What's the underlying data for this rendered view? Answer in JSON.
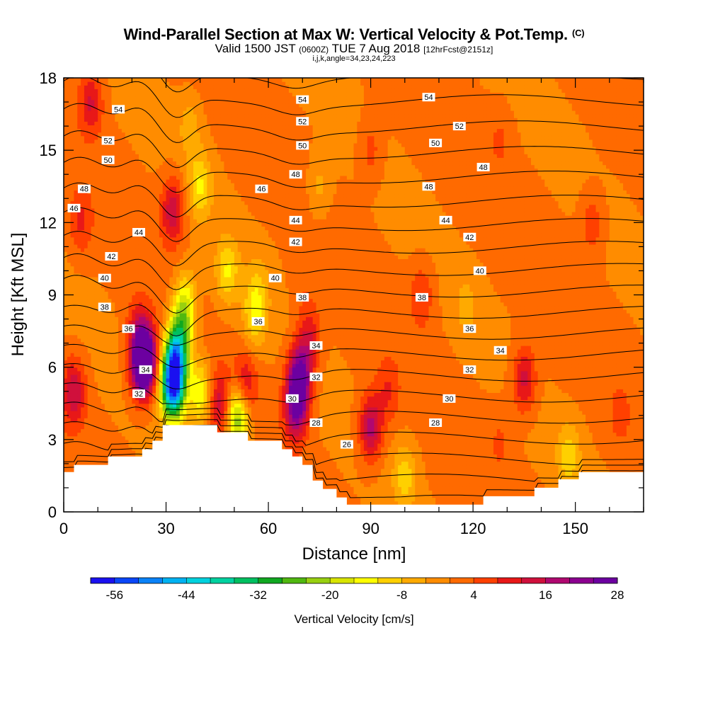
{
  "header": {
    "title": "Wind-Parallel Section at Max W: Vertical Velocity & Pot.Temp.",
    "title_suffix": "(C)",
    "subtitle_pre": "Valid 1500 JST",
    "subtitle_zulu": "(0600Z)",
    "subtitle_date": "TUE 7 Aug 2018",
    "subtitle_fcst": "[12hrFcst@2151z]",
    "subtitle2": "i,j,k,angle=34,23,24,223"
  },
  "chart_data": {
    "type": "heatmap",
    "xlabel": "Distance [nm]",
    "ylabel": "Height [Kft MSL]",
    "xlim": [
      0,
      170
    ],
    "ylim": [
      0,
      18
    ],
    "x_ticks": [
      0,
      30,
      60,
      90,
      120,
      150
    ],
    "y_ticks": [
      0,
      3,
      6,
      9,
      12,
      15,
      18
    ],
    "colorbar": {
      "title": "Vertical Velocity [cm/s]",
      "tick_labels": [
        "-56",
        "-44",
        "-32",
        "-20",
        "-8",
        "4",
        "16",
        "28"
      ],
      "colors": [
        "#1a10f0",
        "#0a46f8",
        "#0a82f8",
        "#00b2f2",
        "#00d2de",
        "#00d2a0",
        "#00c060",
        "#10a820",
        "#50b810",
        "#98d010",
        "#d8e400",
        "#ffff00",
        "#ffd000",
        "#ffaa00",
        "#ff8c00",
        "#ff6a00",
        "#ff4000",
        "#e81818",
        "#d0103c",
        "#b00870",
        "#8c0090",
        "#6c00a0"
      ]
    },
    "ridge_height": [
      [
        0,
        1.65
      ],
      [
        3,
        1.65
      ],
      [
        3,
        1.95
      ],
      [
        13,
        1.95
      ],
      [
        13,
        2.3
      ],
      [
        23,
        2.3
      ],
      [
        23,
        2.6
      ],
      [
        26,
        2.6
      ],
      [
        26,
        2.95
      ],
      [
        29,
        2.95
      ],
      [
        29,
        3.6
      ],
      [
        45,
        3.6
      ],
      [
        45,
        3.3
      ],
      [
        54,
        3.3
      ],
      [
        54,
        2.95
      ],
      [
        64,
        2.95
      ],
      [
        64,
        2.6
      ],
      [
        67,
        2.6
      ],
      [
        67,
        2.3
      ],
      [
        70,
        2.3
      ],
      [
        70,
        1.95
      ],
      [
        73,
        1.95
      ],
      [
        73,
        1.3
      ],
      [
        76,
        1.3
      ],
      [
        76,
        0.95
      ],
      [
        80,
        0.95
      ],
      [
        80,
        0.6
      ],
      [
        83,
        0.6
      ],
      [
        83,
        0.3
      ],
      [
        123,
        0.3
      ],
      [
        123,
        0.65
      ],
      [
        138,
        0.65
      ],
      [
        138,
        1.0
      ],
      [
        145,
        1.0
      ],
      [
        145,
        1.35
      ],
      [
        151,
        1.35
      ],
      [
        151,
        1.65
      ],
      [
        170,
        1.65
      ]
    ],
    "velocity_cells": [
      {
        "x": 3,
        "y": 5,
        "v": 17
      },
      {
        "x": 24,
        "y": 6.5,
        "v": 22
      },
      {
        "x": 23,
        "y": 6.0,
        "v": 29
      },
      {
        "x": 22,
        "y": 7.5,
        "v": 12
      },
      {
        "x": 32,
        "y": 5.2,
        "v": -50
      },
      {
        "x": 33,
        "y": 6.5,
        "v": -34
      },
      {
        "x": 35,
        "y": 8.0,
        "v": -15
      },
      {
        "x": 36,
        "y": 9.0,
        "v": -6
      },
      {
        "x": 40,
        "y": 5.0,
        "v": -14
      },
      {
        "x": 46,
        "y": 4.5,
        "v": 16
      },
      {
        "x": 51,
        "y": 4.0,
        "v": -26
      },
      {
        "x": 53,
        "y": 5.2,
        "v": 16
      },
      {
        "x": 56,
        "y": 8.2,
        "v": -10
      },
      {
        "x": 57,
        "y": 9.5,
        "v": -3
      },
      {
        "x": 69,
        "y": 5.5,
        "v": 30
      },
      {
        "x": 68,
        "y": 4.2,
        "v": 20
      },
      {
        "x": 72,
        "y": 7.2,
        "v": 14
      },
      {
        "x": 90,
        "y": 3.5,
        "v": 20
      },
      {
        "x": 95,
        "y": 5.0,
        "v": 9
      },
      {
        "x": 105,
        "y": 9.0,
        "v": 10
      },
      {
        "x": 100,
        "y": 1.5,
        "v": -8
      },
      {
        "x": 135,
        "y": 5.5,
        "v": 16
      },
      {
        "x": 128,
        "y": 3.0,
        "v": 6
      },
      {
        "x": 148,
        "y": 2.3,
        "v": -8
      },
      {
        "x": 163,
        "y": 4.0,
        "v": 6
      },
      {
        "x": 8,
        "y": 17.0,
        "v": 14
      },
      {
        "x": 5,
        "y": 12.0,
        "v": 10
      },
      {
        "x": 32,
        "y": 12.5,
        "v": 17
      },
      {
        "x": 37,
        "y": 16.0,
        "v": -4
      },
      {
        "x": 40,
        "y": 13.5,
        "v": -10
      },
      {
        "x": 48,
        "y": 10.0,
        "v": -10
      },
      {
        "x": 75,
        "y": 13.5,
        "v": -4
      },
      {
        "x": 70,
        "y": 9.6,
        "v": 5
      },
      {
        "x": 90,
        "y": 15.0,
        "v": 8
      },
      {
        "x": 128,
        "y": 15.5,
        "v": 6
      },
      {
        "x": 118,
        "y": 8.5,
        "v": -3
      },
      {
        "x": 155,
        "y": 12.0,
        "v": 9
      },
      {
        "x": 160,
        "y": 16.5,
        "v": 4
      }
    ],
    "theta_contours": {
      "levels": [
        25,
        26,
        27,
        28,
        29,
        30,
        31,
        32,
        33,
        34,
        35,
        36,
        37,
        38,
        39,
        40,
        41,
        42,
        43,
        44,
        45,
        46,
        47,
        48,
        49,
        50,
        51,
        52,
        53,
        54,
        55,
        56
      ],
      "labeled_levels": [
        26,
        28,
        30,
        32,
        34,
        36,
        38,
        40,
        42,
        44,
        46,
        48,
        50,
        52,
        54
      ],
      "labels": [
        {
          "text": "54",
          "x": 16,
          "y": 16.7
        },
        {
          "text": "54",
          "x": 70,
          "y": 17.1
        },
        {
          "text": "54",
          "x": 107,
          "y": 17.2
        },
        {
          "text": "52",
          "x": 13,
          "y": 15.4
        },
        {
          "text": "52",
          "x": 70,
          "y": 16.2
        },
        {
          "text": "52",
          "x": 116,
          "y": 16.0
        },
        {
          "text": "50",
          "x": 13,
          "y": 14.6
        },
        {
          "text": "50",
          "x": 70,
          "y": 15.2
        },
        {
          "text": "50",
          "x": 109,
          "y": 15.3
        },
        {
          "text": "48",
          "x": 6,
          "y": 13.4
        },
        {
          "text": "48",
          "x": 68,
          "y": 14.0
        },
        {
          "text": "48",
          "x": 107,
          "y": 13.5
        },
        {
          "text": "48",
          "x": 123,
          "y": 14.3
        },
        {
          "text": "46",
          "x": 3,
          "y": 12.6
        },
        {
          "text": "46",
          "x": 58,
          "y": 13.4
        },
        {
          "text": "44",
          "x": 22,
          "y": 11.6
        },
        {
          "text": "44",
          "x": 68,
          "y": 12.1
        },
        {
          "text": "44",
          "x": 112,
          "y": 12.1
        },
        {
          "text": "42",
          "x": 14,
          "y": 10.6
        },
        {
          "text": "42",
          "x": 68,
          "y": 11.2
        },
        {
          "text": "42",
          "x": 119,
          "y": 11.4
        },
        {
          "text": "40",
          "x": 12,
          "y": 9.7
        },
        {
          "text": "40",
          "x": 62,
          "y": 9.7
        },
        {
          "text": "40",
          "x": 122,
          "y": 10.0
        },
        {
          "text": "38",
          "x": 12,
          "y": 8.5
        },
        {
          "text": "38",
          "x": 70,
          "y": 8.9
        },
        {
          "text": "38",
          "x": 105,
          "y": 8.9
        },
        {
          "text": "36",
          "x": 19,
          "y": 7.6
        },
        {
          "text": "36",
          "x": 57,
          "y": 7.9
        },
        {
          "text": "36",
          "x": 119,
          "y": 7.6
        },
        {
          "text": "34",
          "x": 24,
          "y": 5.9
        },
        {
          "text": "34",
          "x": 74,
          "y": 6.9
        },
        {
          "text": "34",
          "x": 128,
          "y": 6.7
        },
        {
          "text": "32",
          "x": 22,
          "y": 4.9
        },
        {
          "text": "32",
          "x": 74,
          "y": 5.6
        },
        {
          "text": "32",
          "x": 119,
          "y": 5.9
        },
        {
          "text": "30",
          "x": 67,
          "y": 4.7
        },
        {
          "text": "30",
          "x": 113,
          "y": 4.7
        },
        {
          "text": "28",
          "x": 74,
          "y": 3.7
        },
        {
          "text": "28",
          "x": 109,
          "y": 3.7
        },
        {
          "text": "26",
          "x": 83,
          "y": 2.8
        }
      ]
    }
  }
}
